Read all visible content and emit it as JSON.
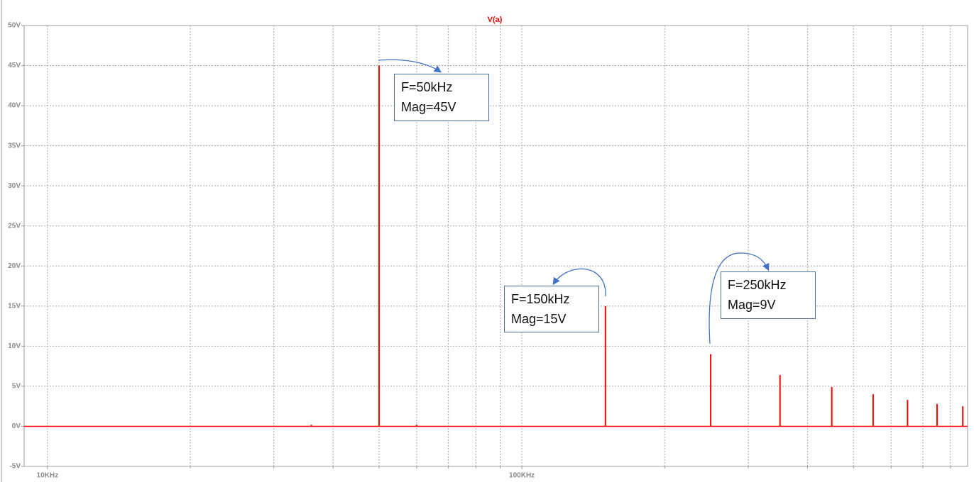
{
  "chart_data": {
    "type": "spectrum",
    "title": "V(a)",
    "color": "#ff0000",
    "x": [
      36000,
      50000,
      60000,
      150000,
      250000,
      350000,
      450000,
      550000,
      650000,
      750000,
      850000
    ],
    "values": [
      0.2,
      45,
      0.2,
      15,
      9,
      6.4,
      4.9,
      4,
      3.3,
      2.8,
      2.5
    ],
    "xlim": [
      8930,
      870000
    ],
    "xlog": true,
    "xticks": [
      {
        "value": 10000,
        "label": "10KHz"
      },
      {
        "value": 100000,
        "label": "100KHz"
      }
    ],
    "xminor": [
      20000,
      30000,
      40000,
      50000,
      60000,
      70000,
      80000,
      90000,
      200000,
      300000,
      400000,
      500000,
      600000,
      700000,
      800000
    ],
    "ylim": [
      -5,
      50
    ],
    "yticks": [
      {
        "value": 50,
        "label": "50V"
      },
      {
        "value": 45,
        "label": "45V"
      },
      {
        "value": 40,
        "label": "40V"
      },
      {
        "value": 35,
        "label": "35V"
      },
      {
        "value": 30,
        "label": "30V"
      },
      {
        "value": 25,
        "label": "25V"
      },
      {
        "value": 20,
        "label": "20V"
      },
      {
        "value": 15,
        "label": "15V"
      },
      {
        "value": 10,
        "label": "10V"
      },
      {
        "value": 5,
        "label": "5V"
      },
      {
        "value": 0,
        "label": "0V"
      },
      {
        "value": -5,
        "label": "-5V"
      }
    ],
    "grid": true,
    "annotations": [
      {
        "lines": [
          "F=50kHz",
          "Mag=45V"
        ]
      },
      {
        "lines": [
          "F=150kHz",
          "Mag=15V"
        ]
      },
      {
        "lines": [
          "F=250kHz",
          "Mag=9V"
        ]
      }
    ]
  }
}
